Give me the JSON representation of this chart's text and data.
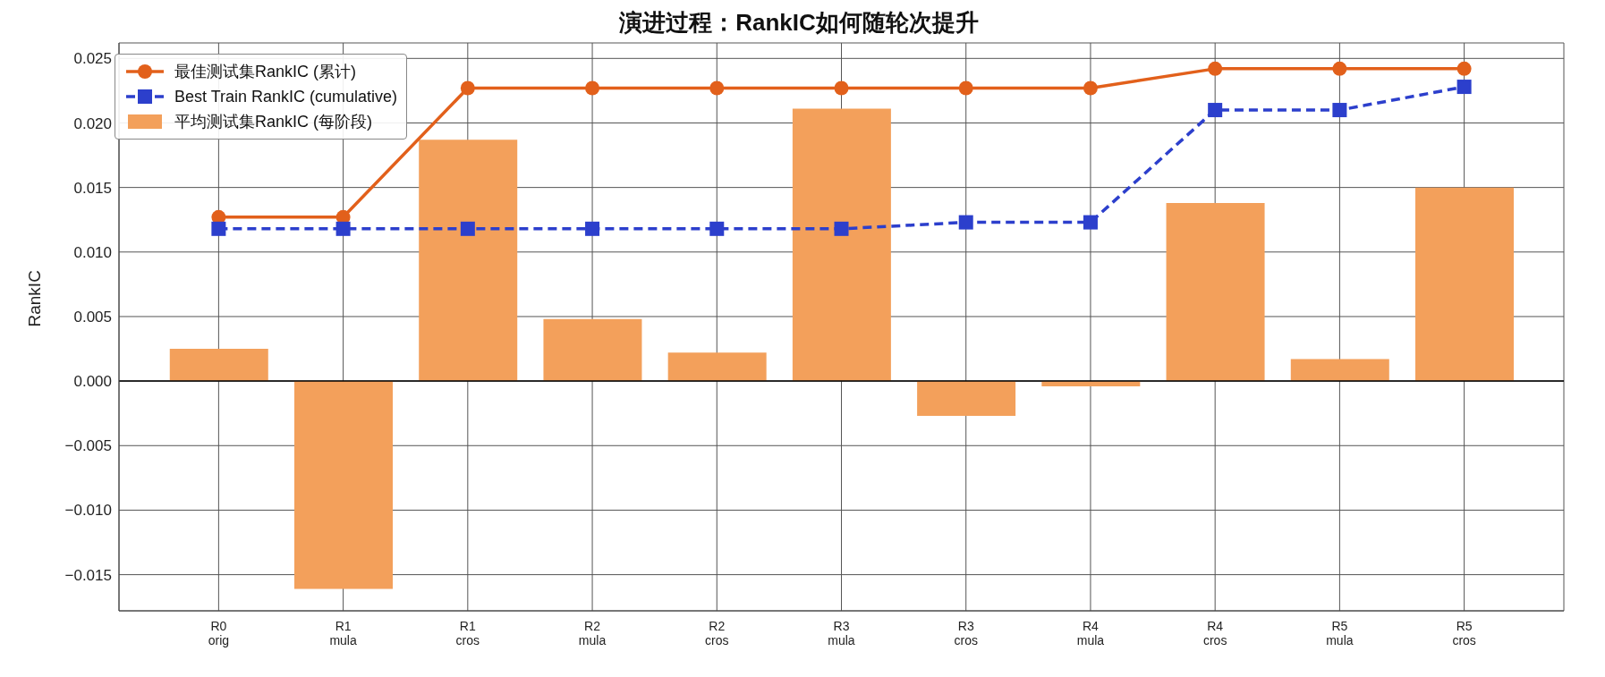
{
  "chart_data": {
    "type": "bar",
    "title": "演进过程：RankIC如何随轮次提升",
    "ylabel": "RankIC",
    "categories": [
      "R0\norig",
      "R1\nmula",
      "R1\ncros",
      "R2\nmula",
      "R2\ncros",
      "R3\nmula",
      "R3\ncros",
      "R4\nmula",
      "R4\ncros",
      "R5\nmula",
      "R5\ncros"
    ],
    "series": [
      {
        "name": "最佳测试集RankIC (累计)",
        "type": "line",
        "color": "#e2601b",
        "marker": "circle",
        "line_style": "solid",
        "values": [
          0.0127,
          0.0127,
          0.0227,
          0.0227,
          0.0227,
          0.0227,
          0.0227,
          0.0227,
          0.0242,
          0.0242,
          0.0242
        ]
      },
      {
        "name": "Best Train RankIC (cumulative)",
        "type": "line",
        "color": "#2c3fcc",
        "marker": "square",
        "line_style": "dashed",
        "values": [
          0.0118,
          0.0118,
          0.0118,
          0.0118,
          0.0118,
          0.0118,
          0.0123,
          0.0123,
          0.021,
          0.021,
          0.0228
        ]
      },
      {
        "name": "平均测试集RankIC (每阶段)",
        "color": "#f3a05b",
        "values": [
          0.0025,
          -0.0161,
          0.0187,
          0.0048,
          0.0022,
          0.0211,
          -0.0027,
          -0.0004,
          0.0138,
          0.0017,
          0.015
        ]
      }
    ],
    "ylim": [
      -0.0178,
      0.0262
    ],
    "yticks": [
      {
        "value": -0.015,
        "label": "−0.015"
      },
      {
        "value": -0.01,
        "label": "−0.010"
      },
      {
        "value": -0.005,
        "label": "−0.005"
      },
      {
        "value": 0,
        "label": "0.000"
      },
      {
        "value": 0.005,
        "label": "0.005"
      },
      {
        "value": 0.01,
        "label": "0.010"
      },
      {
        "value": 0.015,
        "label": "0.015"
      },
      {
        "value": 0.02,
        "label": "0.020"
      },
      {
        "value": 0.025,
        "label": "0.025"
      }
    ],
    "ref_lines": [
      {
        "axis": "y",
        "value": 0,
        "color": "#000000"
      }
    ],
    "grid": true,
    "legend": "top left"
  }
}
